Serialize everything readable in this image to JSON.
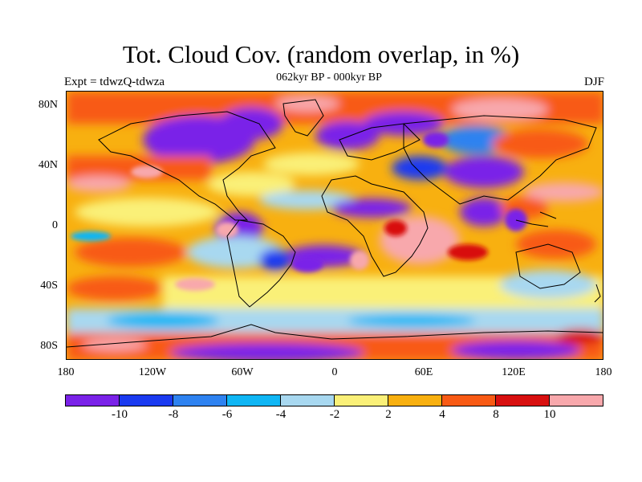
{
  "title": "Tot. Cloud Cov. (random overlap, in %)",
  "subtitle": "062kyr BP - 000kyr BP",
  "expt": "Expt = tdwzQ-tdwza",
  "season": "DJF",
  "lat_labels": [
    "80N",
    "40N",
    "0",
    "40S",
    "80S"
  ],
  "lon_labels": [
    "180",
    "120W",
    "60W",
    "0",
    "60E",
    "120E",
    "180"
  ],
  "colorbar": {
    "colors": [
      "#7a22e8",
      "#1a3af0",
      "#2e82f0",
      "#10b6f4",
      "#a8d8f0",
      "#faf078",
      "#f8b010",
      "#f85a14",
      "#d81010",
      "#f8a8ac"
    ],
    "labels": [
      "-10",
      "-8",
      "-6",
      "-4",
      "-2",
      "2",
      "4",
      "8",
      "10"
    ]
  }
}
